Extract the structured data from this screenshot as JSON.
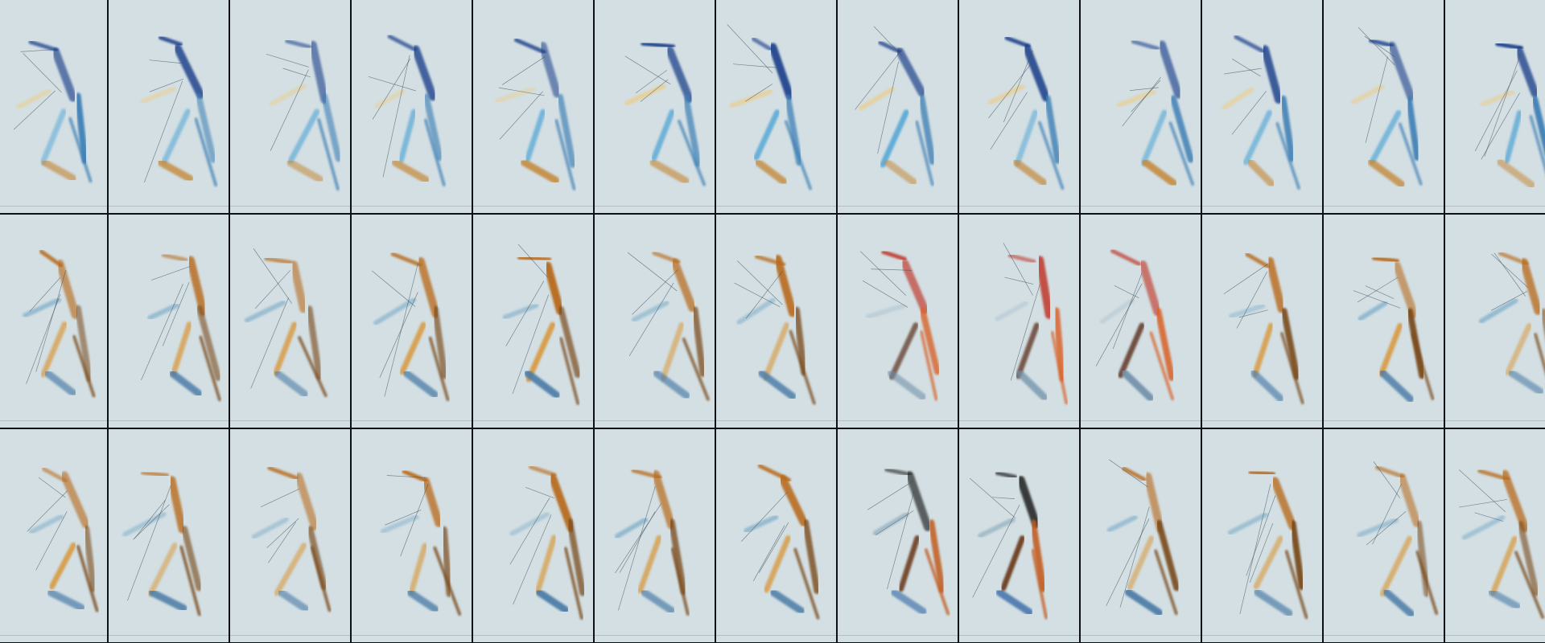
{
  "grid": {
    "rows": 3,
    "cols": 13,
    "background": "#d3dfe3"
  },
  "palettes": {
    "blue": [
      "#1e3f8a",
      "#3d7fb5",
      "#5aa9d6",
      "#c58a3c",
      "#e7d09a"
    ],
    "amber": [
      "#b86a1f",
      "#7a4b1e",
      "#d89b45",
      "#4a7aa6",
      "#8fb7cf"
    ],
    "red": [
      "#c0392b",
      "#d9632a",
      "#5a2f1f",
      "#6e8fa8",
      "#b5c8d4"
    ],
    "dark": [
      "#1a1a1a",
      "#c25a1e",
      "#6b3a1a",
      "#2f64a3",
      "#9bb6c4"
    ]
  }
}
